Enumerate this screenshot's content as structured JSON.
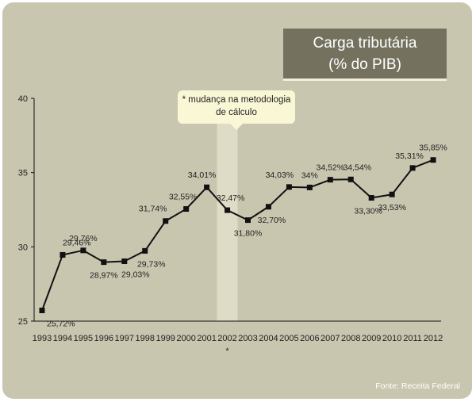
{
  "title_line1": "Carga tributária",
  "title_line2": "(% do PIB)",
  "annotation_line1": "* mudança na metodologia",
  "annotation_line2": "de cálculo",
  "source": "Fonte: Receita Federal",
  "colors": {
    "background": "#c9c6b0",
    "title_box": "#74725f",
    "callout": "#faf7d6",
    "highlight": "#dedbc6",
    "line": "#111111"
  },
  "chart_data": {
    "type": "line",
    "title": "Carga tributária (% do PIB)",
    "xlabel": "",
    "ylabel": "",
    "ylim": [
      25,
      40
    ],
    "yticks": [
      25,
      30,
      35,
      40
    ],
    "highlight_category": "2002",
    "highlight_marker": "*",
    "categories": [
      "1993",
      "1994",
      "1995",
      "1996",
      "1997",
      "1998",
      "1999",
      "2000",
      "2001",
      "2002",
      "2003",
      "2004",
      "2005",
      "2006",
      "2007",
      "2008",
      "2009",
      "2010",
      "2011",
      "2012"
    ],
    "series": [
      {
        "name": "Carga tributária",
        "values": [
          25.72,
          29.46,
          29.76,
          28.97,
          29.03,
          29.73,
          31.74,
          32.55,
          34.01,
          32.47,
          31.8,
          32.7,
          34.03,
          34.0,
          34.52,
          34.54,
          33.3,
          33.53,
          35.31,
          35.85
        ],
        "labels": [
          "25,72%",
          "29,46%",
          "29,76%",
          "28,97%",
          "29,03%",
          "29,73%",
          "31,74%",
          "32,55%",
          "34,01%",
          "32,47%",
          "31,80%",
          "32,70%",
          "34,03%",
          "34%",
          "34,52%",
          "34,54%",
          "33,30%",
          "33,53%",
          "35,31%",
          "35,85%"
        ]
      }
    ]
  }
}
